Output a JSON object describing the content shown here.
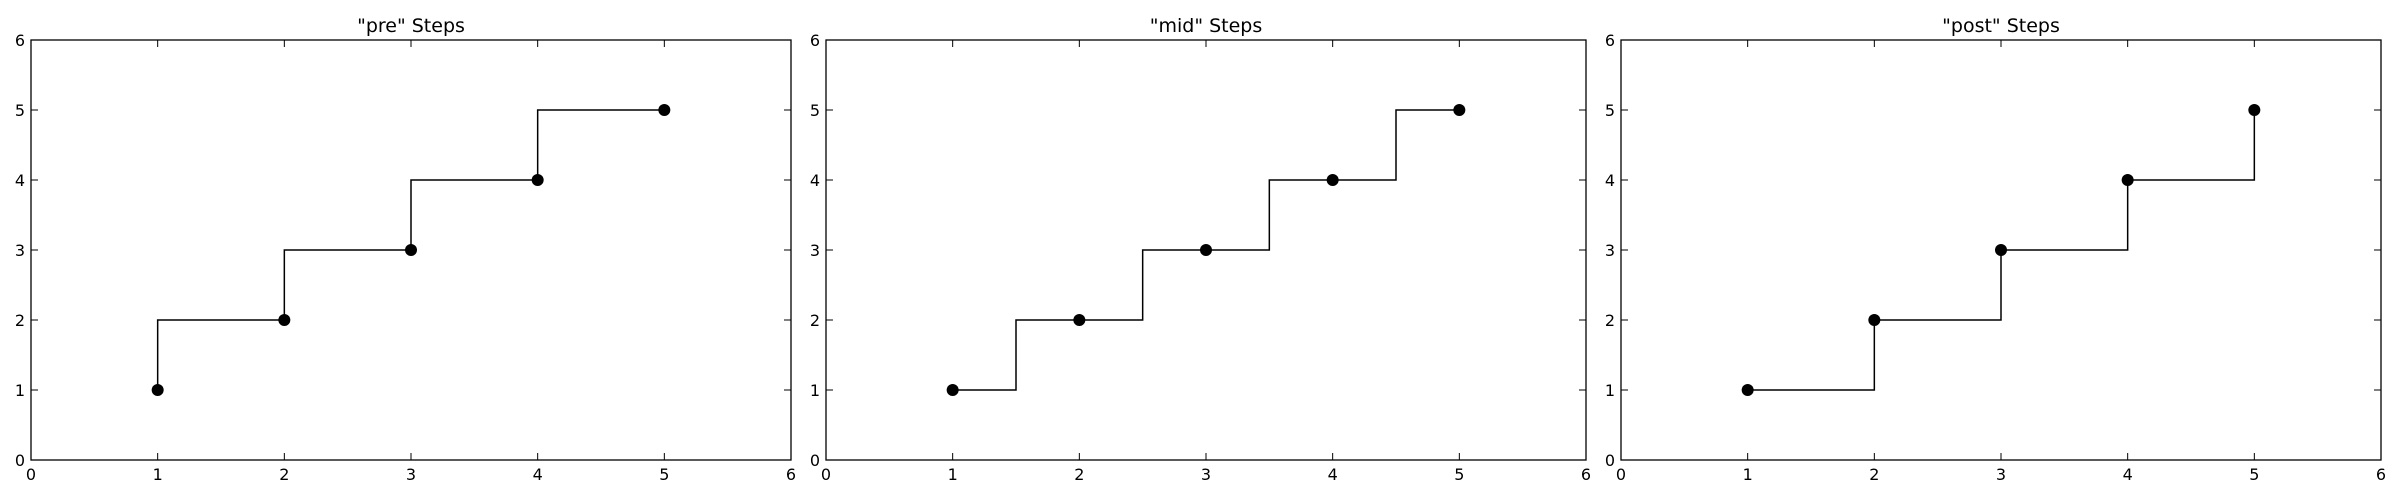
{
  "figure": {
    "background": "#ffffff",
    "line_color": "#000000",
    "marker_color": "#000000"
  },
  "chart_data": [
    {
      "type": "line",
      "title": "\"pre\" Steps",
      "step_mode": "pre",
      "x": [
        1,
        2,
        3,
        4,
        5
      ],
      "y": [
        1,
        2,
        3,
        4,
        5
      ],
      "xlim": [
        0,
        6
      ],
      "ylim": [
        0,
        6
      ],
      "xticks": [
        "0",
        "1",
        "2",
        "3",
        "4",
        "5",
        "6"
      ],
      "yticks": [
        "0",
        "1",
        "2",
        "3",
        "4",
        "5",
        "6"
      ],
      "xlabel": "",
      "ylabel": "",
      "grid": false,
      "markers": true
    },
    {
      "type": "line",
      "title": "\"mid\" Steps",
      "step_mode": "mid",
      "x": [
        1,
        2,
        3,
        4,
        5
      ],
      "y": [
        1,
        2,
        3,
        4,
        5
      ],
      "xlim": [
        0,
        6
      ],
      "ylim": [
        0,
        6
      ],
      "xticks": [
        "0",
        "1",
        "2",
        "3",
        "4",
        "5",
        "6"
      ],
      "yticks": [
        "0",
        "1",
        "2",
        "3",
        "4",
        "5",
        "6"
      ],
      "xlabel": "",
      "ylabel": "",
      "grid": false,
      "markers": true
    },
    {
      "type": "line",
      "title": "\"post\" Steps",
      "step_mode": "post",
      "x": [
        1,
        2,
        3,
        4,
        5
      ],
      "y": [
        1,
        2,
        3,
        4,
        5
      ],
      "xlim": [
        0,
        6
      ],
      "ylim": [
        0,
        6
      ],
      "xticks": [
        "0",
        "1",
        "2",
        "3",
        "4",
        "5",
        "6"
      ],
      "yticks": [
        "0",
        "1",
        "2",
        "3",
        "4",
        "5",
        "6"
      ],
      "xlabel": "",
      "ylabel": "",
      "grid": false,
      "markers": true
    }
  ]
}
